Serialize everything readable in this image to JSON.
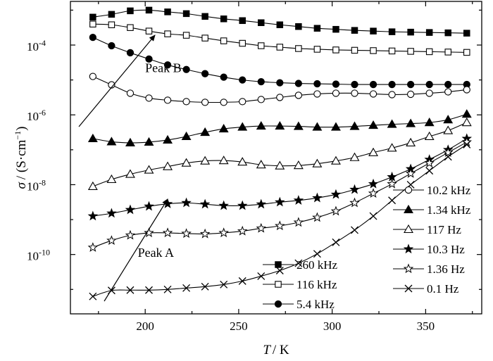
{
  "chart_data": {
    "type": "line",
    "title": "",
    "xlabel_var": "T",
    "xlabel_unit": "/ K",
    "ylabel_var": "σ",
    "ylabel_unit": "/ (S·cm",
    "ylabel_exp": "−1",
    "ylabel_close": ")",
    "xlim": [
      160,
      380
    ],
    "ylim_log10": [
      -11.7,
      -2.75
    ],
    "y_scale": "log",
    "grid": false,
    "x_ticks": [
      {
        "value": 200,
        "label": "200"
      },
      {
        "value": 250,
        "label": "250"
      },
      {
        "value": 300,
        "label": "300"
      },
      {
        "value": 350,
        "label": "350"
      }
    ],
    "y_ticks": [
      {
        "exp": -4,
        "base": "10",
        "sup": "-4"
      },
      {
        "exp": -6,
        "base": "10",
        "sup": "-6"
      },
      {
        "exp": -8,
        "base": "10",
        "sup": "-8"
      },
      {
        "exp": -10,
        "base": "10",
        "sup": "-10"
      }
    ],
    "x": [
      172,
      182,
      192,
      202,
      212,
      222,
      232,
      242,
      252,
      262,
      272,
      282,
      292,
      302,
      312,
      322,
      332,
      342,
      352,
      362,
      372
    ],
    "series": [
      {
        "name": "260 kHz",
        "marker": "square-filled",
        "log10_values": [
          -3.2,
          -3.12,
          -3.02,
          -3.0,
          -3.05,
          -3.1,
          -3.18,
          -3.25,
          -3.3,
          -3.36,
          -3.42,
          -3.47,
          -3.52,
          -3.55,
          -3.58,
          -3.6,
          -3.62,
          -3.63,
          -3.64,
          -3.65,
          -3.66
        ]
      },
      {
        "name": "116 kHz",
        "marker": "square-open",
        "log10_values": [
          -3.4,
          -3.42,
          -3.5,
          -3.6,
          -3.68,
          -3.72,
          -3.8,
          -3.88,
          -3.95,
          -4.02,
          -4.06,
          -4.1,
          -4.12,
          -4.14,
          -4.15,
          -4.16,
          -4.17,
          -4.18,
          -4.19,
          -4.2,
          -4.21
        ]
      },
      {
        "name": "5.4 kHz",
        "marker": "circle-filled",
        "log10_values": [
          -3.78,
          -4.02,
          -4.22,
          -4.4,
          -4.57,
          -4.7,
          -4.82,
          -4.92,
          -5.0,
          -5.05,
          -5.08,
          -5.1,
          -5.11,
          -5.12,
          -5.13,
          -5.13,
          -5.13,
          -5.13,
          -5.13,
          -5.13,
          -5.13
        ]
      },
      {
        "name": "10.2 kHz",
        "marker": "circle-open",
        "log10_values": [
          -4.9,
          -5.14,
          -5.38,
          -5.52,
          -5.58,
          -5.62,
          -5.64,
          -5.64,
          -5.62,
          -5.56,
          -5.5,
          -5.44,
          -5.4,
          -5.38,
          -5.38,
          -5.4,
          -5.42,
          -5.41,
          -5.38,
          -5.34,
          -5.28
        ]
      },
      {
        "name": "1.34 kHz",
        "marker": "triangle-filled",
        "log10_values": [
          -6.68,
          -6.77,
          -6.8,
          -6.78,
          -6.72,
          -6.62,
          -6.5,
          -6.4,
          -6.35,
          -6.32,
          -6.32,
          -6.33,
          -6.35,
          -6.35,
          -6.33,
          -6.3,
          -6.27,
          -6.25,
          -6.22,
          -6.14,
          -5.98
        ]
      },
      {
        "name": "117 Hz",
        "marker": "triangle-open",
        "log10_values": [
          -8.05,
          -7.85,
          -7.7,
          -7.58,
          -7.48,
          -7.38,
          -7.32,
          -7.31,
          -7.35,
          -7.43,
          -7.46,
          -7.45,
          -7.4,
          -7.32,
          -7.22,
          -7.08,
          -6.95,
          -6.8,
          -6.62,
          -6.45,
          -6.22
        ]
      },
      {
        "name": "10.3 Hz",
        "marker": "star-filled",
        "log10_values": [
          -8.9,
          -8.82,
          -8.72,
          -8.62,
          -8.55,
          -8.52,
          -8.56,
          -8.6,
          -8.6,
          -8.56,
          -8.5,
          -8.45,
          -8.38,
          -8.28,
          -8.14,
          -7.98,
          -7.78,
          -7.55,
          -7.28,
          -7.0,
          -6.68
        ]
      },
      {
        "name": "1.36 Hz",
        "marker": "star-open",
        "log10_values": [
          -9.8,
          -9.6,
          -9.45,
          -9.38,
          -9.38,
          -9.4,
          -9.41,
          -9.38,
          -9.33,
          -9.25,
          -9.18,
          -9.08,
          -8.94,
          -8.76,
          -8.52,
          -8.25,
          -7.98,
          -7.68,
          -7.38,
          -7.08,
          -6.78
        ]
      },
      {
        "name": "0.1 Hz",
        "marker": "cross",
        "log10_values": [
          -11.2,
          -11.03,
          -11.02,
          -11.02,
          -11.0,
          -10.96,
          -10.92,
          -10.86,
          -10.76,
          -10.62,
          -10.46,
          -10.25,
          -9.98,
          -9.65,
          -9.3,
          -8.9,
          -8.45,
          -8.0,
          -7.6,
          -7.2,
          -6.85
        ]
      }
    ],
    "legend": {
      "placement": "bottom-right",
      "layout": "two-columns"
    },
    "annotations": [
      {
        "text": "Peak B",
        "x": 200,
        "log10_y": -4.78
      },
      {
        "text": "Peak A",
        "x": 196,
        "log10_y": -10.07
      }
    ]
  }
}
